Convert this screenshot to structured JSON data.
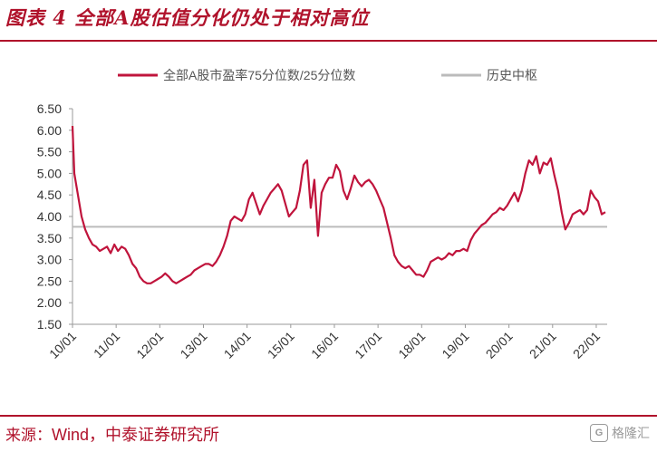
{
  "figure": {
    "title": "图表 4 全部A股估值分化仍处于相对高位",
    "source_label": "来源：",
    "source_text": "Wind，中泰证券研究所",
    "watermark": "格隆汇"
  },
  "colors": {
    "series_line": "#c0143c",
    "reference_line": "#bbbbbb",
    "brand": "#b0122b"
  },
  "chart_data": {
    "type": "line",
    "title": "",
    "xlabel": "",
    "ylabel": "",
    "x_ticks": [
      "10/01",
      "11/01",
      "12/01",
      "13/01",
      "14/01",
      "15/01",
      "16/01",
      "17/01",
      "18/01",
      "19/01",
      "20/01",
      "21/01",
      "22/01"
    ],
    "y_ticks": [
      "1.50",
      "2.00",
      "2.50",
      "3.00",
      "3.50",
      "4.00",
      "4.50",
      "5.00",
      "5.50",
      "6.00",
      "6.50"
    ],
    "ylim": [
      1.5,
      6.5
    ],
    "xlim": [
      "2010-01",
      "2022-03"
    ],
    "legend_position": "top",
    "grid": false,
    "series": [
      {
        "name": "全部A股市盈率75分位数/25分位数",
        "points": [
          [
            "2010-01",
            6.1
          ],
          [
            "2010-01",
            5.0
          ],
          [
            "2010-02",
            4.5
          ],
          [
            "2010-03",
            4.0
          ],
          [
            "2010-04",
            3.7
          ],
          [
            "2010-05",
            3.5
          ],
          [
            "2010-06",
            3.35
          ],
          [
            "2010-07",
            3.3
          ],
          [
            "2010-08",
            3.2
          ],
          [
            "2010-09",
            3.25
          ],
          [
            "2010-10",
            3.3
          ],
          [
            "2010-11",
            3.15
          ],
          [
            "2010-12",
            3.35
          ],
          [
            "2011-01",
            3.2
          ],
          [
            "2011-02",
            3.3
          ],
          [
            "2011-03",
            3.25
          ],
          [
            "2011-04",
            3.1
          ],
          [
            "2011-05",
            2.9
          ],
          [
            "2011-06",
            2.8
          ],
          [
            "2011-07",
            2.6
          ],
          [
            "2011-08",
            2.5
          ],
          [
            "2011-09",
            2.45
          ],
          [
            "2011-10",
            2.45
          ],
          [
            "2011-11",
            2.5
          ],
          [
            "2011-12",
            2.55
          ],
          [
            "2012-01",
            2.6
          ],
          [
            "2012-02",
            2.68
          ],
          [
            "2012-03",
            2.6
          ],
          [
            "2012-04",
            2.5
          ],
          [
            "2012-05",
            2.45
          ],
          [
            "2012-06",
            2.5
          ],
          [
            "2012-07",
            2.55
          ],
          [
            "2012-08",
            2.6
          ],
          [
            "2012-09",
            2.65
          ],
          [
            "2012-10",
            2.75
          ],
          [
            "2012-11",
            2.8
          ],
          [
            "2012-12",
            2.85
          ],
          [
            "2013-01",
            2.9
          ],
          [
            "2013-02",
            2.9
          ],
          [
            "2013-03",
            2.85
          ],
          [
            "2013-04",
            2.95
          ],
          [
            "2013-05",
            3.1
          ],
          [
            "2013-06",
            3.3
          ],
          [
            "2013-07",
            3.55
          ],
          [
            "2013-08",
            3.9
          ],
          [
            "2013-09",
            4.0
          ],
          [
            "2013-10",
            3.95
          ],
          [
            "2013-11",
            3.9
          ],
          [
            "2013-12",
            4.05
          ],
          [
            "2014-01",
            4.4
          ],
          [
            "2014-02",
            4.55
          ],
          [
            "2014-03",
            4.3
          ],
          [
            "2014-04",
            4.05
          ],
          [
            "2014-05",
            4.25
          ],
          [
            "2014-06",
            4.4
          ],
          [
            "2014-07",
            4.55
          ],
          [
            "2014-08",
            4.65
          ],
          [
            "2014-09",
            4.75
          ],
          [
            "2014-10",
            4.6
          ],
          [
            "2014-11",
            4.3
          ],
          [
            "2014-12",
            4.0
          ],
          [
            "2015-01",
            4.1
          ],
          [
            "2015-02",
            4.2
          ],
          [
            "2015-03",
            4.6
          ],
          [
            "2015-04",
            5.2
          ],
          [
            "2015-05",
            5.3
          ],
          [
            "2015-06",
            4.2
          ],
          [
            "2015-07",
            4.85
          ],
          [
            "2015-08",
            3.55
          ],
          [
            "2015-09",
            4.55
          ],
          [
            "2015-10",
            4.75
          ],
          [
            "2015-11",
            4.9
          ],
          [
            "2015-12",
            4.9
          ],
          [
            "2016-01",
            5.2
          ],
          [
            "2016-02",
            5.05
          ],
          [
            "2016-03",
            4.6
          ],
          [
            "2016-04",
            4.4
          ],
          [
            "2016-05",
            4.65
          ],
          [
            "2016-06",
            4.95
          ],
          [
            "2016-07",
            4.8
          ],
          [
            "2016-08",
            4.7
          ],
          [
            "2016-09",
            4.8
          ],
          [
            "2016-10",
            4.85
          ],
          [
            "2016-11",
            4.75
          ],
          [
            "2016-12",
            4.6
          ],
          [
            "2017-01",
            4.4
          ],
          [
            "2017-02",
            4.2
          ],
          [
            "2017-03",
            3.85
          ],
          [
            "2017-04",
            3.5
          ],
          [
            "2017-05",
            3.1
          ],
          [
            "2017-06",
            2.95
          ],
          [
            "2017-07",
            2.85
          ],
          [
            "2017-08",
            2.8
          ],
          [
            "2017-09",
            2.85
          ],
          [
            "2017-10",
            2.75
          ],
          [
            "2017-11",
            2.65
          ],
          [
            "2017-12",
            2.65
          ],
          [
            "2018-01",
            2.6
          ],
          [
            "2018-02",
            2.75
          ],
          [
            "2018-03",
            2.95
          ],
          [
            "2018-04",
            3.0
          ],
          [
            "2018-05",
            3.05
          ],
          [
            "2018-06",
            3.0
          ],
          [
            "2018-07",
            3.05
          ],
          [
            "2018-08",
            3.15
          ],
          [
            "2018-09",
            3.1
          ],
          [
            "2018-10",
            3.2
          ],
          [
            "2018-11",
            3.2
          ],
          [
            "2018-12",
            3.25
          ],
          [
            "2019-01",
            3.2
          ],
          [
            "2019-02",
            3.45
          ],
          [
            "2019-03",
            3.6
          ],
          [
            "2019-04",
            3.7
          ],
          [
            "2019-05",
            3.8
          ],
          [
            "2019-06",
            3.85
          ],
          [
            "2019-07",
            3.95
          ],
          [
            "2019-08",
            4.05
          ],
          [
            "2019-09",
            4.1
          ],
          [
            "2019-10",
            4.2
          ],
          [
            "2019-11",
            4.15
          ],
          [
            "2019-12",
            4.25
          ],
          [
            "2020-01",
            4.4
          ],
          [
            "2020-02",
            4.55
          ],
          [
            "2020-03",
            4.35
          ],
          [
            "2020-04",
            4.6
          ],
          [
            "2020-05",
            5.0
          ],
          [
            "2020-06",
            5.3
          ],
          [
            "2020-07",
            5.2
          ],
          [
            "2020-08",
            5.4
          ],
          [
            "2020-09",
            5.0
          ],
          [
            "2020-10",
            5.25
          ],
          [
            "2020-11",
            5.2
          ],
          [
            "2020-12",
            5.35
          ],
          [
            "2021-01",
            4.95
          ],
          [
            "2021-02",
            4.6
          ],
          [
            "2021-03",
            4.1
          ],
          [
            "2021-04",
            3.7
          ],
          [
            "2021-05",
            3.85
          ],
          [
            "2021-06",
            4.05
          ],
          [
            "2021-07",
            4.1
          ],
          [
            "2021-08",
            4.15
          ],
          [
            "2021-09",
            4.05
          ],
          [
            "2021-10",
            4.15
          ],
          [
            "2021-11",
            4.6
          ],
          [
            "2021-12",
            4.45
          ],
          [
            "2022-01",
            4.35
          ],
          [
            "2022-02",
            4.05
          ],
          [
            "2022-03",
            4.1
          ]
        ]
      },
      {
        "name": "历史中枢",
        "constant": 3.76
      }
    ]
  }
}
